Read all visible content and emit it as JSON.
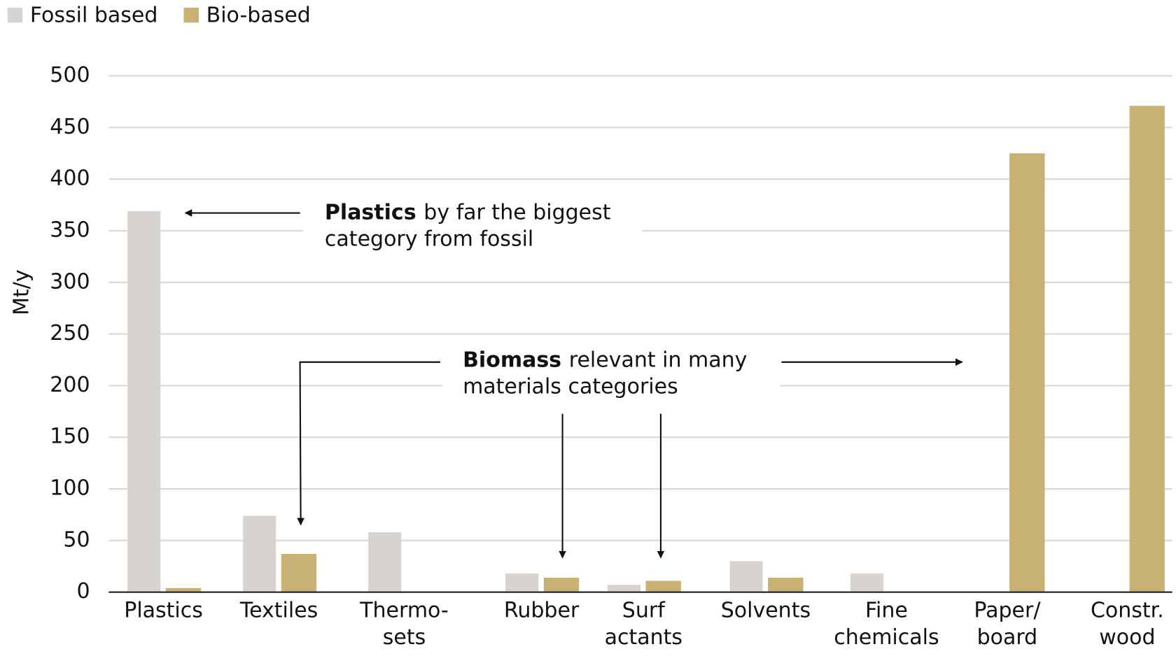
{
  "chart_data": {
    "type": "bar",
    "categories": [
      "Plastics",
      "Textiles",
      "Thermo-\nsets",
      "Rubber",
      "Surf\nactants",
      "Solvents",
      "Fine\nchemicals",
      "Paper/\nboard",
      "Constr.\nwood"
    ],
    "series": [
      {
        "name": "Fossil based",
        "color": "#d8d3cf",
        "values": [
          369,
          74,
          58,
          18,
          7,
          30,
          18,
          null,
          null
        ]
      },
      {
        "name": "Bio-based",
        "color": "#c8b273",
        "values": [
          4,
          37,
          null,
          14,
          11,
          14,
          null,
          425,
          471
        ]
      }
    ],
    "ylabel": "Mt/y",
    "ylim": [
      0,
      500
    ],
    "yticks": [
      0,
      50,
      100,
      150,
      200,
      250,
      300,
      350,
      400,
      450,
      500
    ],
    "grid": true,
    "legend": "top-left",
    "annotations": [
      {
        "bold": "Plastics",
        "text": "by far the biggest",
        "text2": "category from fossil"
      },
      {
        "bold": "Biomass",
        "text": "relevant in many",
        "text2": "materials categories"
      }
    ]
  }
}
